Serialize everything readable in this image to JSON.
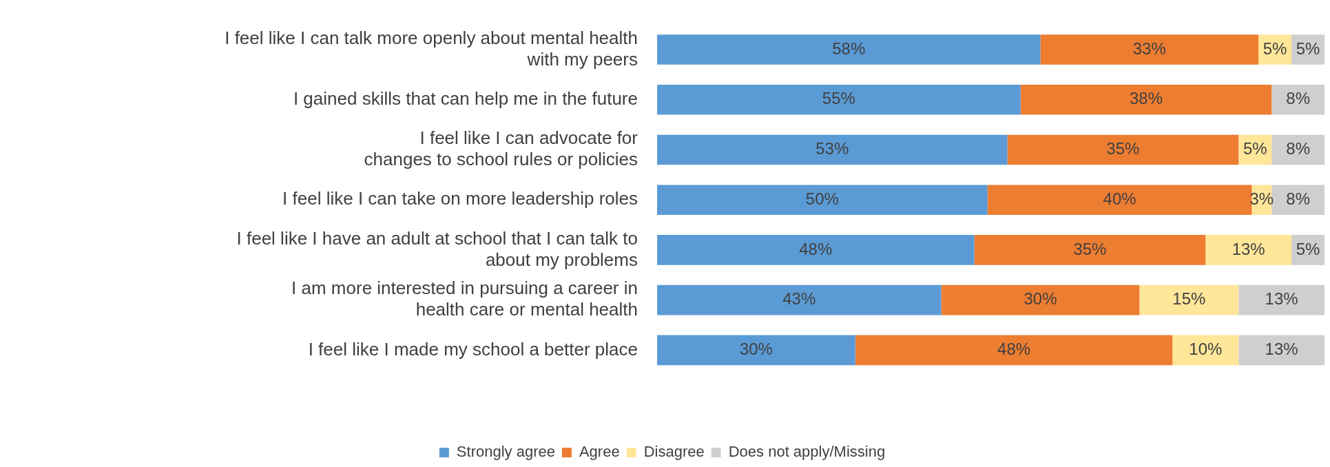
{
  "chart_data": {
    "type": "bar",
    "orientation": "horizontal",
    "stacked": true,
    "legend": "bottom",
    "categories": [
      "I feel like I can talk more openly about mental health\nwith my peers",
      "I gained skills that can help me in the future",
      "I feel like I can advocate for\nchanges to school rules or policies",
      "I feel like I can take on more leadership roles",
      "I feel like I have an adult at school that I can talk to\nabout my problems",
      "I am more interested in pursuing a career in\nhealth care or mental health",
      "I feel like I made my school a better place"
    ],
    "series": [
      {
        "name": "Strongly agree",
        "color": "#5b9bd5",
        "values": [
          58,
          55,
          53,
          50,
          48,
          43,
          30
        ],
        "value_labels": [
          "58%",
          "55%",
          "53%",
          "50%",
          "48%",
          "43%",
          "30%"
        ]
      },
      {
        "name": "Agree",
        "color": "#ed7d31",
        "values": [
          33,
          38,
          35,
          40,
          35,
          30,
          48
        ],
        "value_labels": [
          "33%",
          "38%",
          "35%",
          "40%",
          "35%",
          "30%",
          "48%"
        ]
      },
      {
        "name": "Disagree",
        "color": "#ffe699",
        "values": [
          5,
          null,
          5,
          3,
          13,
          15,
          10
        ],
        "value_labels": [
          "5%",
          null,
          "5%",
          "3%",
          "13%",
          "15%",
          "10%"
        ]
      },
      {
        "name": "Does not apply/Missing",
        "color": "#d0cece",
        "values": [
          5,
          8,
          8,
          8,
          5,
          13,
          13
        ],
        "value_labels": [
          "5%",
          "8%",
          "8%",
          "8%",
          "5%",
          "13%",
          "13%"
        ]
      }
    ]
  }
}
